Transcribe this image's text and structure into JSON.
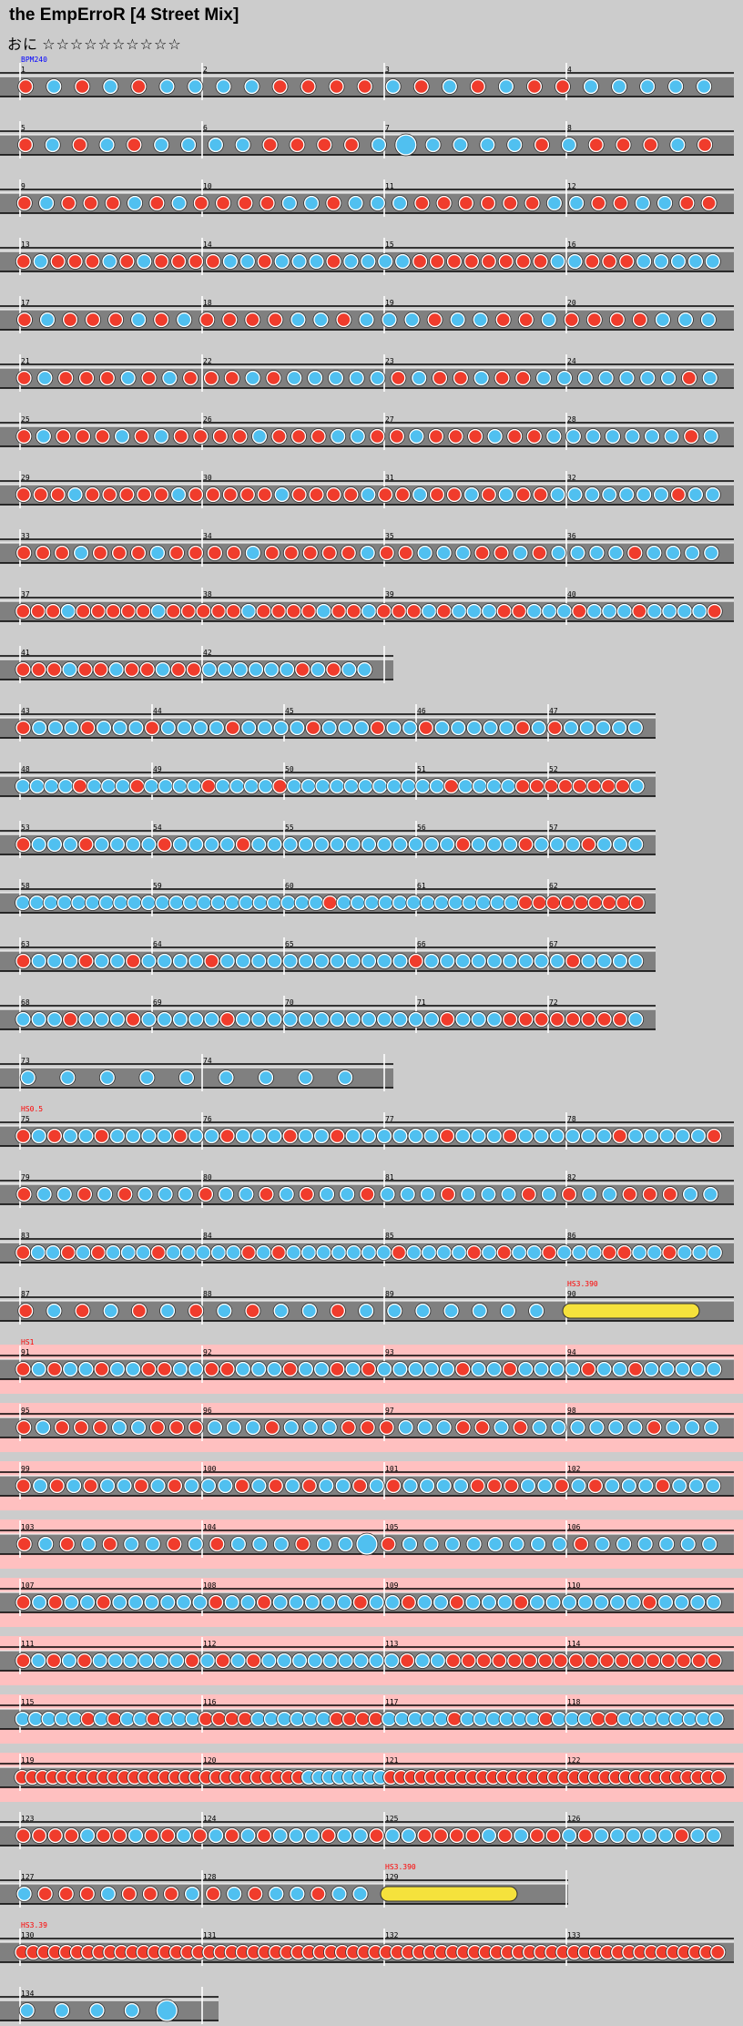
{
  "song": {
    "title": "the EmpErroR [4 Street Mix]",
    "difficulty_label": "おに",
    "stars": "☆☆☆☆☆☆☆☆☆☆"
  },
  "colors": {
    "background": "#cccccc",
    "lane": "#808080",
    "lane_line": "#ffffff",
    "gogo": "#ffc0c0",
    "don": "#f03c2c",
    "ka": "#50c0f0",
    "roll": "#f5e23c",
    "event_bpm": "#0000ff",
    "event_hs": "#ff0000"
  },
  "icons": {
    "don_note": "red-circle-icon",
    "ka_note": "blue-circle-icon",
    "roll_note": "yellow-bar-icon"
  },
  "chart_data": {
    "type": "note-chart",
    "rows": [
      {
        "measures": [
          1,
          2,
          3,
          4
        ],
        "events": [
          {
            "text": "BPM240",
            "kind": "bpm"
          }
        ],
        "pattern": "DKDKDKKKKDDDDK|DKDKDDKKKKK"
      },
      {
        "measures": [
          5,
          6,
          7,
          8
        ],
        "pattern": "DKDKDKKKKDDDDK|XKKK|KDKDDDKD"
      },
      {
        "measures": [
          9,
          10,
          11,
          12
        ],
        "pattern": "DKDDDKDKDDDDKKDKKKD|DDDDDKKDDKKDD"
      },
      {
        "measures": [
          13,
          14,
          15,
          16
        ],
        "pattern": "DKDDDKDKDDDDKKDKKKD|KKKKDDDDDDDD|KKDDDKKKKK"
      },
      {
        "measures": [
          17,
          18,
          19,
          20
        ],
        "pattern": "DKDDDKDKDDDDKKDKKKD|KKDDKDDDDKKK"
      },
      {
        "measures": [
          21,
          22,
          23,
          24
        ],
        "pattern": "DKDDDKDKDDDKDKKK|KKDKDDKDDKKKKKKKDK"
      },
      {
        "measures": [
          25,
          26,
          27,
          28
        ],
        "pattern": "DKDDDKDKDDDDKDDDKK|DDKDDDKDDKKKKKKKDK"
      },
      {
        "measures": [
          29,
          30,
          31,
          32
        ],
        "pattern": "DDDKDDDDDKDDDDDKDDDDK|DDKDDKDKDDKKKKKKKDKK"
      },
      {
        "measures": [
          33,
          34,
          35,
          36
        ],
        "pattern": "DDDKDDDKDDDDKDDDDDKDDK|KKDDKDKKKKDKKKK"
      },
      {
        "measures": [
          37,
          38,
          39,
          40
        ],
        "pattern": "DDDKDDDDDKDDDDDKDDDDK|DDKDDDKDKKKDDKKKDKKKDKKKKD"
      },
      {
        "measures": [
          41,
          42
        ],
        "width": "half",
        "pattern": "DDDKDDKDDKDDKKK|KKKDKDKK"
      },
      {
        "measures": [
          43,
          44,
          45,
          46,
          47
        ],
        "width": "wide",
        "pattern": "DKKKDKKKDKKKK|DKKKKDKKKDKKDKKKKK|DKDKKKKK"
      },
      {
        "measures": [
          48,
          49,
          50,
          51,
          52
        ],
        "width": "wide",
        "pattern": "KKKKDKKKDKKKKDKKKKDKKKK|KKKKKKKDKKKKDDDDDDDDK"
      },
      {
        "measures": [
          53,
          54,
          55,
          56,
          57
        ],
        "width": "wide",
        "pattern": "DKKKDKKKKDKKKKDKKKKK|KKKKKKKKDKKKDKKKDKKK"
      },
      {
        "measures": [
          58,
          59,
          60,
          61,
          62
        ],
        "width": "wide",
        "pattern": "KKKKKKKKKKKKKKKKKKKKKKDKKKKK|KKKKKKKKDDDDDDDDD"
      },
      {
        "measures": [
          63,
          64,
          65,
          66,
          67
        ],
        "width": "wide",
        "pattern": "DKKKDKKDKKKKDKKKKKKKK|KKKKDKKKKKKKKKDKKKK"
      },
      {
        "measures": [
          68,
          69,
          70,
          71,
          72
        ],
        "width": "wide",
        "pattern": "KKKDKKKDKKKKKDKKKKKKKK|KKKKKDKKKDDDDDDDDK"
      },
      {
        "measures": [
          73,
          74
        ],
        "width": "half",
        "pattern": "KKKKKKKKK"
      },
      {
        "measures": [
          75,
          76,
          77,
          78
        ],
        "events": [
          {
            "text": "HS0.5",
            "kind": "hs"
          }
        ],
        "pattern": "DKDKKDKKKKDKKDKKKDKKDKKKKK|KDKKKDKKKKKKDKKKKKD"
      },
      {
        "measures": [
          79,
          80,
          81,
          82
        ],
        "pattern": "DKKDKDKKKDKKDKDKKDKK|KDKKKDKDKKDDDKK"
      },
      {
        "measures": [
          83,
          84,
          85,
          86
        ],
        "pattern": "DKKDKDKKKDKKKKKDKDKKKKKKKD|KKKKDKDKKDKKKDDKKDKKK"
      },
      {
        "measures": [
          87,
          88,
          89,
          90
        ],
        "events": [
          {
            "text": "HS3.390",
            "kind": "hs",
            "measure": 90
          }
        ],
        "roll": {
          "measure": 90
        },
        "pattern": "DKDKDKDKDKKDKKK|KKKK"
      },
      {
        "measures": [
          91,
          92,
          93,
          94
        ],
        "gogo": true,
        "events": [
          {
            "text": "HS1",
            "kind": "hs"
          }
        ],
        "pattern": "DKDKKDKKDDKKDDKKKDKKDKDKKKKK|DKKDKKKKDKKDKKKKK"
      },
      {
        "measures": [
          95,
          96,
          97,
          98
        ],
        "gogo": true,
        "pattern": "DKDDDKKDDDKKKDKKKD|DDKKKDDKDKKKKKKDKKK"
      },
      {
        "measures": [
          99,
          100,
          101,
          102
        ],
        "gogo": true,
        "pattern": "DKDKDKKDKDKKKDKDKDKKDKDKKKKD|DDKKDKDKKKDKKK"
      },
      {
        "measures": [
          103,
          104,
          105,
          106
        ],
        "gogo": true,
        "pattern": "DKDKDKKDKDKKKDKKX|DKKKKKKKKDKKKKKK"
      },
      {
        "measures": [
          107,
          108,
          109,
          110
        ],
        "gogo": true,
        "pattern": "DKDKKDKKKKKKDKKDKKKKKDKKDKKD|KKKDKKKKKKKDKKKK"
      },
      {
        "measures": [
          111,
          112,
          113,
          114
        ],
        "gogo": true,
        "pattern": "DKDKDKKKKKKDKDKDKKKKKKKKKDKK|DDDDDDDDDDDDDDDDDD"
      },
      {
        "measures": [
          115,
          116,
          117,
          118
        ],
        "gogo": true,
        "pattern": "KKKKKDKDKKDKKKDDDDKKKKKKDDDDKKKKK|DKKKKKKDKKKDDKKKKKKKK"
      },
      {
        "measures": [
          119,
          120,
          121,
          122
        ],
        "gogo": true,
        "pattern": "DDDDDDDDDDDDDDDDDDDDDDDDDDDDKKKKKKKK|DDDDDDDDDDDDDDDDDDDDDDDDDDDDDDDDD"
      },
      {
        "measures": [
          123,
          124,
          125,
          126
        ],
        "pattern": "DDDDKDDKDDKDKDKDKKKDKKDKKDD|DDKDKDDKDKKKKKDKK"
      },
      {
        "measures": [
          127,
          128,
          129
        ],
        "width": "three",
        "events": [
          {
            "text": "HS3.390",
            "kind": "hs",
            "measure": 129
          }
        ],
        "roll": {
          "measure": 129
        },
        "pattern": "KDDDKDDDKDKDKKDKK"
      },
      {
        "measures": [
          130,
          131,
          132,
          133
        ],
        "events": [
          {
            "text": "HS3.39",
            "kind": "hs"
          }
        ],
        "pattern": "DDDDDDDDDDDDDDDDDDDDDDDDDDDDDDDDDDDD|DDDDDDDDDDDDDDDDDDDDDDDDDDDD"
      },
      {
        "measures": [
          134
        ],
        "width": "one",
        "pattern": "KKKKX"
      }
    ]
  }
}
